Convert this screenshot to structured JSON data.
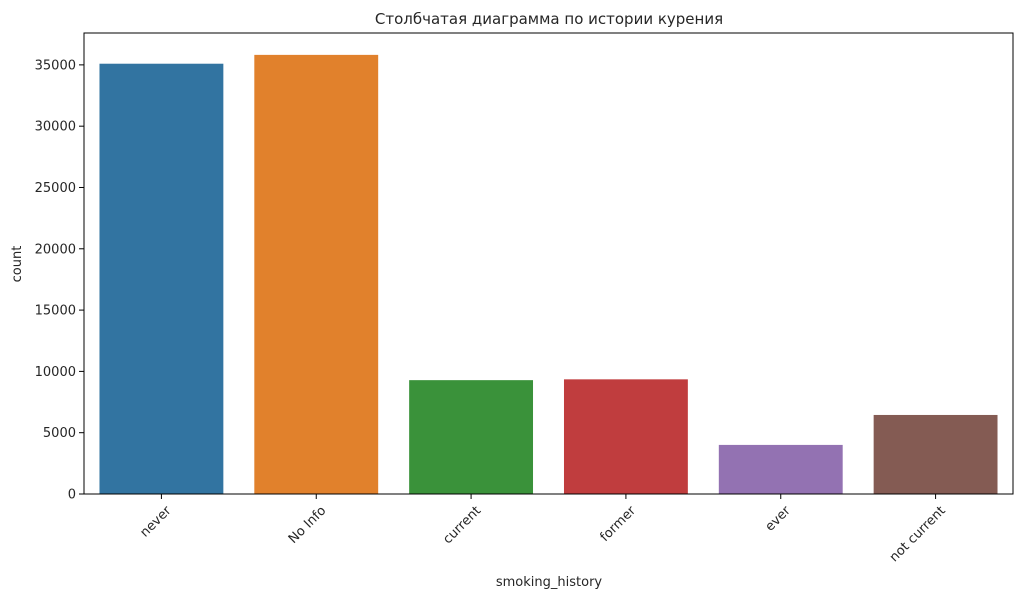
{
  "chart_data": {
    "type": "bar",
    "title": "Столбчатая диаграмма по истории курения",
    "xlabel": "smoking_history",
    "ylabel": "count",
    "categories": [
      "never",
      "No Info",
      "current",
      "former",
      "ever",
      "not current"
    ],
    "values": [
      35095,
      35816,
      9286,
      9352,
      4004,
      6447
    ],
    "colors": [
      "#3274a1",
      "#e1812c",
      "#3a923a",
      "#c03d3e",
      "#9372b2",
      "#845b53"
    ],
    "ylim": [
      0,
      37600
    ],
    "yticks": [
      0,
      5000,
      10000,
      15000,
      20000,
      25000,
      30000,
      35000
    ],
    "ytick_labels": [
      "0",
      "5000",
      "10000",
      "15000",
      "20000",
      "25000",
      "30000",
      "35000"
    ],
    "xtick_rotation_deg": 45,
    "grid": false,
    "legend": "none"
  }
}
